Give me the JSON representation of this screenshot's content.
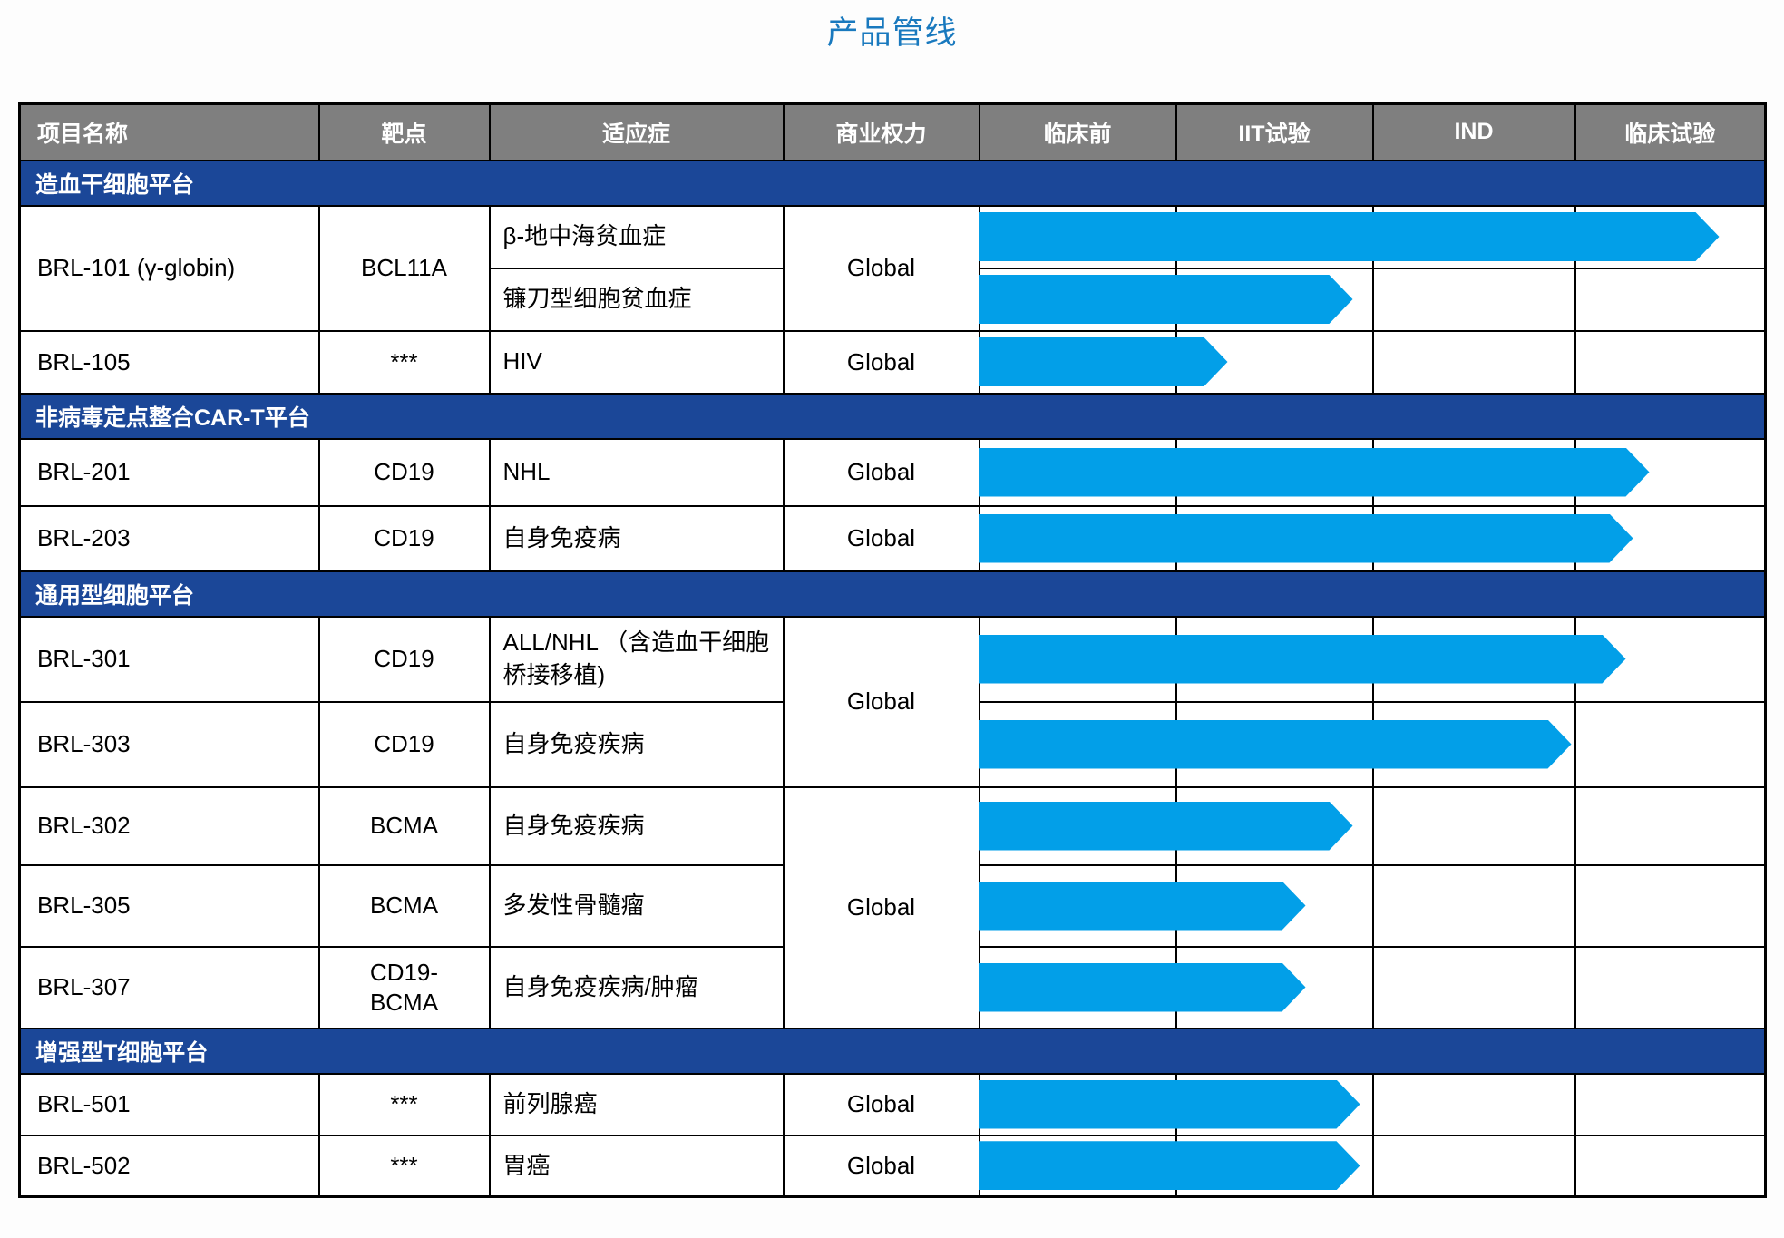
{
  "title": "产品管线",
  "colors": {
    "title": "#1979BE",
    "header_bg": "#7F7F7F",
    "section_band": "#1B4798",
    "arrow": "#029FE8",
    "border": "#000000"
  },
  "chart_data": {
    "type": "table",
    "title": "产品管线",
    "columns": [
      "项目名称",
      "靶点",
      "适应症",
      "商业权力",
      "临床前",
      "IIT试验",
      "IND",
      "临床试验"
    ],
    "stage_columns": [
      "临床前",
      "IIT试验",
      "IND",
      "临床试验"
    ],
    "note": "arrow_frac = progress of the blue arrow across the four stage columns (0 = start of 临床前, 1 = end of 临床试验)",
    "sections": [
      {
        "platform": "造血干细胞平台",
        "rows": [
          {
            "project": "BRL-101 (γ-globin)",
            "project_rowspan": 2,
            "target": "BCL11A",
            "target_rowspan": 2,
            "indication": "β-地中海贫血症",
            "rights": "Global",
            "rights_rowspan": 2,
            "stage_reached": "临床试验",
            "arrow_frac": 0.95
          },
          {
            "indication": "镰刀型细胞贫血症",
            "stage_reached": "IIT试验",
            "arrow_frac": 0.48
          },
          {
            "project": "BRL-105",
            "target": "***",
            "indication": "HIV",
            "rights": "Global",
            "stage_reached": "IIT试验",
            "arrow_frac": 0.32
          }
        ]
      },
      {
        "platform": "非病毒定点整合CAR-T平台",
        "rows": [
          {
            "project": "BRL-201",
            "target": "CD19",
            "indication": "NHL",
            "rights": "Global",
            "stage_reached": "临床试验",
            "arrow_frac": 0.86
          },
          {
            "project": "BRL-203",
            "target": "CD19",
            "indication": "自身免疫病",
            "rights": "Global",
            "stage_reached": "临床试验",
            "arrow_frac": 0.84
          }
        ]
      },
      {
        "platform": "通用型细胞平台",
        "rows": [
          {
            "project": "BRL-301",
            "target": "CD19",
            "indication": "ALL/NHL （含造血干细胞桥接移植)",
            "rights": "Global",
            "rights_rowspan": 2,
            "stage_reached": "临床试验",
            "arrow_frac": 0.83
          },
          {
            "project": "BRL-303",
            "target": "CD19",
            "indication": "自身免疫疾病",
            "stage_reached": "IND",
            "arrow_frac": 0.76
          },
          {
            "project": "BRL-302",
            "target": "BCMA",
            "indication": "自身免疫疾病",
            "rights": "Global",
            "rights_rowspan": 3,
            "stage_reached": "IIT试验",
            "arrow_frac": 0.48
          },
          {
            "project": "BRL-305",
            "target": "BCMA",
            "indication": "多发性骨髓瘤",
            "stage_reached": "IIT试验",
            "arrow_frac": 0.42
          },
          {
            "project": "BRL-307",
            "target": "CD19-\nBCMA",
            "indication": "自身免疫疾病/肿瘤",
            "stage_reached": "IIT试验",
            "arrow_frac": 0.42
          }
        ]
      },
      {
        "platform": "增强型T细胞平台",
        "rows": [
          {
            "project": "BRL-501",
            "target": "***",
            "indication": "前列腺癌",
            "rights": "Global",
            "stage_reached": "IIT试验",
            "arrow_frac": 0.49
          },
          {
            "project": "BRL-502",
            "target": "***",
            "indication": "胃癌",
            "rights": "Global",
            "stage_reached": "IIT试验",
            "arrow_frac": 0.49
          }
        ]
      }
    ]
  }
}
